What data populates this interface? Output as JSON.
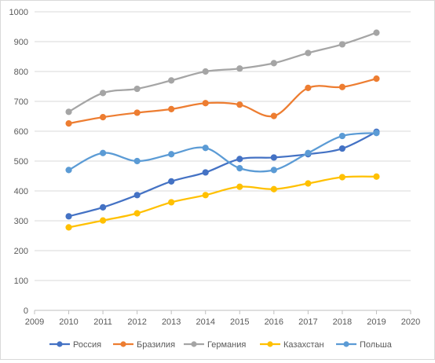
{
  "chart_data": {
    "type": "line",
    "title": "",
    "xlabel": "",
    "ylabel": "",
    "xlim": [
      2009,
      2020
    ],
    "ylim": [
      0,
      1000
    ],
    "x_ticks": [
      2009,
      2010,
      2011,
      2012,
      2013,
      2014,
      2015,
      2016,
      2017,
      2018,
      2019,
      2020
    ],
    "y_ticks": [
      0,
      100,
      200,
      300,
      400,
      500,
      600,
      700,
      800,
      900,
      1000
    ],
    "grid": "horizontal",
    "smooth": true,
    "legend_position": "bottom",
    "x": [
      2010,
      2011,
      2012,
      2013,
      2014,
      2015,
      2016,
      2017,
      2018,
      2019
    ],
    "series": [
      {
        "name": "Россия",
        "color": "#4472c4",
        "values": [
          315,
          345,
          386,
          432,
          462,
          507,
          512,
          523,
          542,
          598
        ]
      },
      {
        "name": "Бразилия",
        "color": "#ed7d31",
        "values": [
          626,
          647,
          662,
          674,
          694,
          689,
          651,
          745,
          748,
          776
        ]
      },
      {
        "name": "Германия",
        "color": "#a5a5a5",
        "values": [
          665,
          728,
          742,
          770,
          800,
          810,
          828,
          862,
          891,
          930
        ]
      },
      {
        "name": "Казахстан",
        "color": "#ffc000",
        "values": [
          278,
          301,
          325,
          362,
          386,
          414,
          406,
          425,
          446,
          448
        ]
      },
      {
        "name": "Польша",
        "color": "#5b9bd5",
        "values": [
          470,
          527,
          500,
          523,
          544,
          476,
          470,
          527,
          584,
          594
        ]
      }
    ]
  }
}
